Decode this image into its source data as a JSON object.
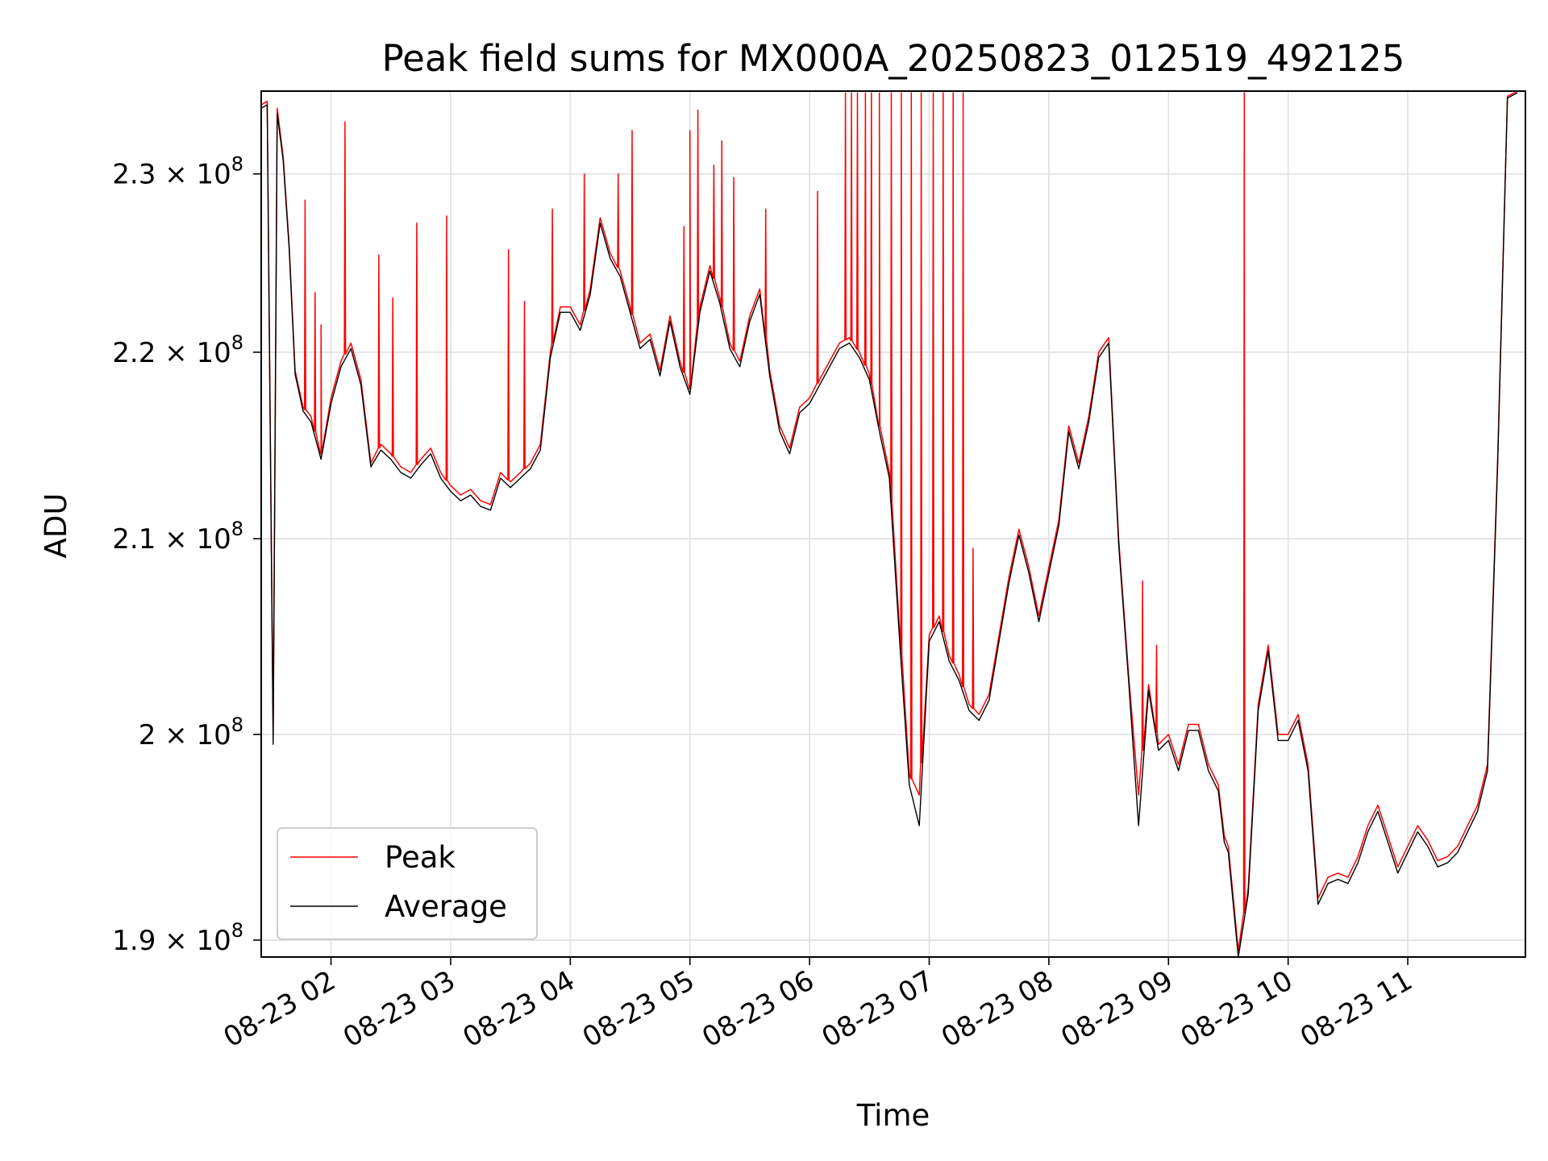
{
  "chart_data": {
    "type": "line",
    "title": "Peak field sums for MX000A_20250823_012519_492125",
    "xlabel": "Time",
    "ylabel": "ADU",
    "xlim": [
      "08-23 01:25",
      "08-23 11:59"
    ],
    "ylim": [
      189200000,
      234800000
    ],
    "y_scale": "log",
    "grid": true,
    "legend_position": "lower-left",
    "x_ticks": [
      "08-23 02",
      "08-23 03",
      "08-23 04",
      "08-23 05",
      "08-23 06",
      "08-23 07",
      "08-23 08",
      "08-23 09",
      "08-23 10",
      "08-23 11"
    ],
    "y_ticks": [
      {
        "value": 190000000,
        "label": "1.9 × 10",
        "exp": "8"
      },
      {
        "value": 200000000,
        "label": "2 × 10",
        "exp": "8"
      },
      {
        "value": 210000000,
        "label": "2.1 × 10",
        "exp": "8"
      },
      {
        "value": 220000000,
        "label": "2.2 × 10",
        "exp": "8"
      },
      {
        "value": 230000000,
        "label": "2.3 × 10",
        "exp": "8"
      }
    ],
    "x": [
      "01:25",
      "01:28",
      "01:31",
      "01:33",
      "01:36",
      "01:39",
      "01:42",
      "01:46",
      "01:50",
      "01:55",
      "02:00",
      "02:05",
      "02:10",
      "02:15",
      "02:20",
      "02:25",
      "02:30",
      "02:35",
      "02:40",
      "02:45",
      "02:50",
      "02:55",
      "03:00",
      "03:05",
      "03:10",
      "03:15",
      "03:20",
      "03:25",
      "03:30",
      "03:35",
      "03:40",
      "03:45",
      "03:50",
      "03:55",
      "04:00",
      "04:05",
      "04:10",
      "04:15",
      "04:20",
      "04:25",
      "04:30",
      "04:35",
      "04:40",
      "04:45",
      "04:50",
      "04:55",
      "05:00",
      "05:05",
      "05:10",
      "05:15",
      "05:20",
      "05:25",
      "05:30",
      "05:35",
      "05:40",
      "05:45",
      "05:50",
      "05:55",
      "06:00",
      "06:05",
      "06:10",
      "06:15",
      "06:20",
      "06:25",
      "06:30",
      "06:35",
      "06:40",
      "06:45",
      "06:50",
      "06:55",
      "07:00",
      "07:05",
      "07:10",
      "07:15",
      "07:20",
      "07:25",
      "07:30",
      "07:35",
      "07:40",
      "07:45",
      "07:50",
      "07:55",
      "08:00",
      "08:05",
      "08:10",
      "08:15",
      "08:20",
      "08:25",
      "08:30",
      "08:35",
      "08:40",
      "08:45",
      "08:50",
      "08:55",
      "09:00",
      "09:05",
      "09:10",
      "09:15",
      "09:20",
      "09:25",
      "09:28",
      "09:30",
      "09:35",
      "09:40",
      "09:45",
      "09:50",
      "09:55",
      "10:00",
      "10:05",
      "10:10",
      "10:15",
      "10:20",
      "10:25",
      "10:30",
      "10:35",
      "10:40",
      "10:45",
      "10:50",
      "10:55",
      "11:00",
      "11:05",
      "11:10",
      "11:15",
      "11:20",
      "11:25",
      "11:30",
      "11:35",
      "11:40",
      "11:45",
      "11:50",
      "11:55"
    ],
    "series": [
      {
        "name": "Peak",
        "color": "#ff0000",
        "values": [
          234000000,
          234200000,
          200000000,
          233800000,
          231000000,
          226000000,
          219000000,
          217000000,
          216500000,
          214500000,
          217500000,
          219500000,
          220500000,
          218500000,
          214000000,
          215000000,
          214500000,
          213800000,
          213500000,
          214200000,
          214800000,
          213500000,
          212800000,
          212300000,
          212600000,
          212000000,
          211800000,
          213500000,
          213000000,
          213500000,
          214000000,
          215000000,
          220000000,
          222500000,
          222500000,
          221500000,
          223500000,
          227500000,
          225500000,
          224500000,
          222500000,
          220500000,
          221000000,
          219000000,
          222000000,
          219500000,
          218000000,
          222500000,
          224800000,
          223000000,
          220500000,
          219500000,
          222000000,
          223500000,
          219000000,
          216000000,
          214800000,
          217000000,
          217500000,
          218500000,
          219500000,
          220500000,
          220800000,
          220000000,
          218800000,
          216000000,
          213500000,
          205500000,
          198000000,
          197000000,
          205000000,
          206000000,
          204000000,
          203000000,
          201500000,
          201000000,
          202000000,
          205000000,
          208000000,
          210500000,
          208500000,
          206000000,
          208500000,
          211000000,
          216000000,
          214000000,
          216500000,
          220000000,
          220800000,
          210000000,
          203000000,
          197000000,
          202500000,
          199500000,
          200000000,
          198500000,
          200500000,
          200500000,
          198500000,
          197500000,
          195000000,
          194500000,
          189500000,
          192500000,
          201500000,
          204500000,
          200000000,
          200000000,
          201000000,
          198500000,
          192000000,
          193000000,
          193200000,
          193000000,
          194000000,
          195500000,
          196500000,
          195000000,
          193500000,
          194500000,
          195500000,
          194800000,
          193800000,
          194000000,
          194500000,
          195500000,
          196500000,
          198500000,
          214000000,
          234500000,
          234800000
        ],
        "spikes": [
          {
            "x": "01:47",
            "value": 228500000
          },
          {
            "x": "01:52",
            "value": 223300000
          },
          {
            "x": "01:55",
            "value": 221500000
          },
          {
            "x": "02:07",
            "value": 233000000
          },
          {
            "x": "02:24",
            "value": 225400000
          },
          {
            "x": "02:31",
            "value": 223000000
          },
          {
            "x": "02:43",
            "value": 227200000
          },
          {
            "x": "02:58",
            "value": 227600000
          },
          {
            "x": "03:29",
            "value": 225700000
          },
          {
            "x": "03:37",
            "value": 222800000
          },
          {
            "x": "03:51",
            "value": 228000000
          },
          {
            "x": "04:07",
            "value": 230000000
          },
          {
            "x": "04:24",
            "value": 230000000
          },
          {
            "x": "04:31",
            "value": 232500000
          },
          {
            "x": "04:57",
            "value": 227000000
          },
          {
            "x": "05:00",
            "value": 232500000
          },
          {
            "x": "05:04",
            "value": 233700000
          },
          {
            "x": "05:12",
            "value": 230500000
          },
          {
            "x": "05:16",
            "value": 231900000
          },
          {
            "x": "05:22",
            "value": 229800000
          },
          {
            "x": "05:38",
            "value": 228000000
          },
          {
            "x": "06:04",
            "value": 229000000
          },
          {
            "x": "06:18",
            "value": 234700000
          },
          {
            "x": "06:21",
            "value": 234700000
          },
          {
            "x": "06:24",
            "value": 234700000
          },
          {
            "x": "06:28",
            "value": 234700000
          },
          {
            "x": "06:31",
            "value": 234700000
          },
          {
            "x": "06:35",
            "value": 234700000
          },
          {
            "x": "06:41",
            "value": 234700000
          },
          {
            "x": "06:46",
            "value": 234700000
          },
          {
            "x": "06:51",
            "value": 234700000
          },
          {
            "x": "06:56",
            "value": 234700000
          },
          {
            "x": "07:02",
            "value": 234700000
          },
          {
            "x": "07:07",
            "value": 234700000
          },
          {
            "x": "07:12",
            "value": 234700000
          },
          {
            "x": "07:17",
            "value": 234700000
          },
          {
            "x": "07:22",
            "value": 209500000
          },
          {
            "x": "08:47",
            "value": 207800000
          },
          {
            "x": "08:54",
            "value": 204500000
          },
          {
            "x": "09:38",
            "value": 234700000
          }
        ]
      },
      {
        "name": "Average",
        "color": "#000000",
        "values": [
          233800000,
          234000000,
          199500000,
          233500000,
          230800000,
          225800000,
          218800000,
          216800000,
          216200000,
          214200000,
          217200000,
          219200000,
          220200000,
          218200000,
          213800000,
          214700000,
          214200000,
          213500000,
          213200000,
          213900000,
          214500000,
          213200000,
          212500000,
          212000000,
          212300000,
          211700000,
          211500000,
          213200000,
          212700000,
          213200000,
          213700000,
          214700000,
          219700000,
          222200000,
          222200000,
          221200000,
          223200000,
          227200000,
          225200000,
          224200000,
          222200000,
          220200000,
          220700000,
          218700000,
          221700000,
          219200000,
          217700000,
          222200000,
          224500000,
          222700000,
          220200000,
          219200000,
          221700000,
          223200000,
          218700000,
          215700000,
          214500000,
          216700000,
          217200000,
          218200000,
          219200000,
          220200000,
          220500000,
          219700000,
          218500000,
          215700000,
          213200000,
          205000000,
          197500000,
          195500000,
          204700000,
          205700000,
          203700000,
          202700000,
          201200000,
          200700000,
          201700000,
          204700000,
          207700000,
          210200000,
          208200000,
          205700000,
          208200000,
          210700000,
          215700000,
          213700000,
          216200000,
          219700000,
          220500000,
          209700000,
          202700000,
          195500000,
          202200000,
          199200000,
          199700000,
          198200000,
          200200000,
          200200000,
          198200000,
          197200000,
          194700000,
          194200000,
          189200000,
          192200000,
          201200000,
          204200000,
          199700000,
          199700000,
          200700000,
          198200000,
          191700000,
          192700000,
          192900000,
          192700000,
          193700000,
          195200000,
          196200000,
          194700000,
          193200000,
          194200000,
          195200000,
          194500000,
          193500000,
          193700000,
          194200000,
          195200000,
          196200000,
          198200000,
          213700000,
          234400000,
          234700000
        ]
      }
    ]
  }
}
